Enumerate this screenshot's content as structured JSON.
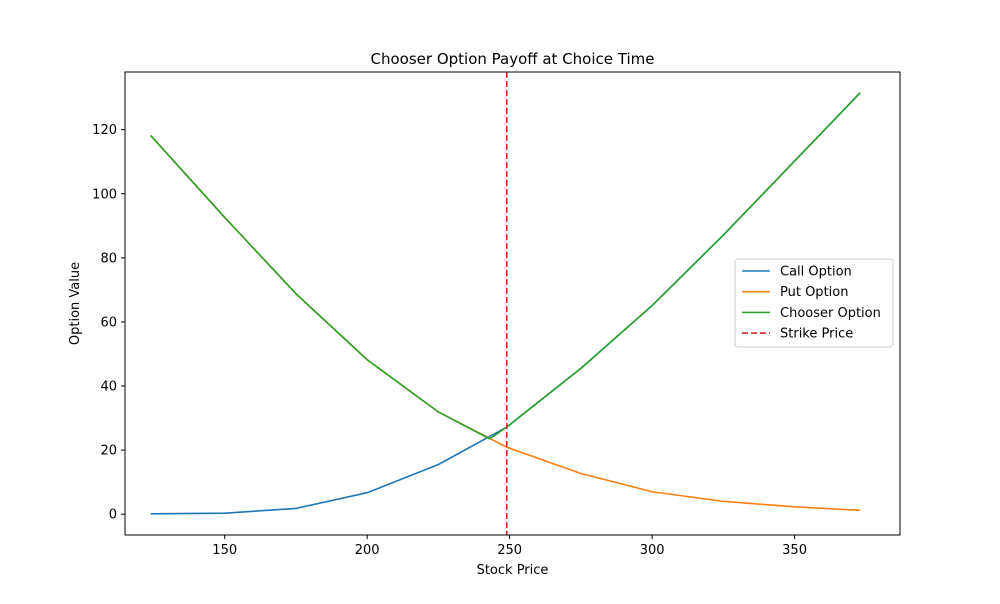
{
  "chart_data": {
    "type": "line",
    "title": "Chooser Option Payoff at Choice Time",
    "xlabel": "Stock Price",
    "ylabel": "Option Value",
    "xlim": [
      115,
      387
    ],
    "ylim": [
      -6.5,
      138
    ],
    "xticks": [
      150,
      200,
      250,
      300,
      350
    ],
    "yticks": [
      0,
      20,
      40,
      60,
      80,
      100,
      120
    ],
    "grid": false,
    "legend_position": "center-right",
    "strike": 249,
    "series": [
      {
        "name": "Call Option",
        "color": "#1f77b4",
        "style": "solid",
        "x": [
          124,
          150,
          175,
          200,
          225,
          249,
          275,
          300,
          325,
          350,
          373
        ],
        "y": [
          0.1,
          0.3,
          1.8,
          6.7,
          15.5,
          27.2,
          45.5,
          65.1,
          87.1,
          110.2,
          131.5
        ]
      },
      {
        "name": "Put Option",
        "color": "#ff7f0e",
        "style": "solid",
        "x": [
          124,
          150,
          175,
          200,
          225,
          249,
          275,
          300,
          325,
          350,
          373
        ],
        "y": [
          118.2,
          92.6,
          68.8,
          48.2,
          31.9,
          20.9,
          12.7,
          7.0,
          4.0,
          2.3,
          1.2
        ]
      },
      {
        "name": "Chooser Option",
        "color": "#2ca02c",
        "style": "solid",
        "x": [
          124,
          150,
          175,
          200,
          225,
          243,
          249,
          275,
          300,
          325,
          350,
          373
        ],
        "y": [
          118.2,
          92.6,
          68.8,
          48.2,
          31.9,
          23.5,
          27.2,
          45.5,
          65.1,
          87.1,
          110.2,
          131.5
        ]
      },
      {
        "name": "Strike Price",
        "color": "#d62728",
        "style": "dashed"
      }
    ]
  }
}
